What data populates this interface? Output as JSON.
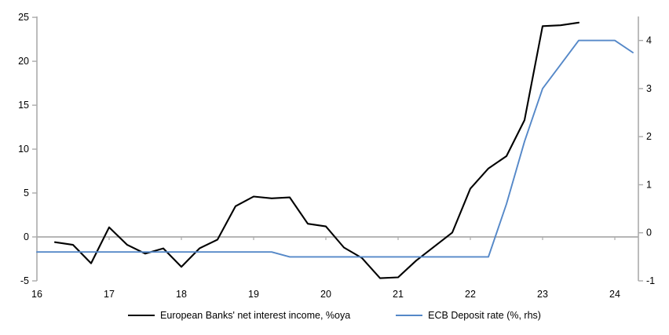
{
  "chart_data": {
    "type": "line",
    "title": "",
    "x_axis": {
      "min": 16,
      "max": 24.33,
      "ticks": [
        16,
        17,
        18,
        19,
        20,
        21,
        22,
        23,
        24
      ]
    },
    "left_axis": {
      "min": -5,
      "max": 25.1,
      "ticks": [
        -5,
        0,
        5,
        10,
        15,
        20,
        25
      ]
    },
    "right_axis": {
      "min": -1,
      "max": 4.5,
      "ticks": [
        -1,
        0,
        1,
        2,
        3,
        4
      ]
    },
    "grid": "zero-line-only",
    "legend_position": "bottom-center",
    "axis_color": "#ABABAB",
    "zero_line_color": "#ABABAB",
    "series": [
      {
        "name": "European Banks' net interest income, %oya",
        "axis": "left",
        "color": "#000000",
        "x": [
          16.25,
          16.5,
          16.75,
          17.0,
          17.25,
          17.5,
          17.75,
          18.0,
          18.25,
          18.5,
          18.75,
          19.0,
          19.25,
          19.5,
          19.75,
          20.0,
          20.25,
          20.5,
          20.75,
          21.0,
          21.25,
          21.5,
          21.75,
          22.0,
          22.25,
          22.5,
          22.75,
          23.0,
          23.25,
          23.5
        ],
        "values": [
          -0.6,
          -0.9,
          -3.0,
          1.1,
          -0.9,
          -1.9,
          -1.3,
          -3.4,
          -1.3,
          -0.3,
          3.5,
          4.6,
          4.4,
          4.5,
          1.5,
          1.2,
          -1.2,
          -2.4,
          -4.7,
          -4.6,
          -2.7,
          -1.1,
          0.5,
          5.5,
          7.8,
          9.2,
          13.3,
          24.0,
          24.1,
          24.4
        ]
      },
      {
        "name": "ECB Deposit rate (%, rhs)",
        "axis": "right",
        "color": "#5588C8",
        "x": [
          16.0,
          16.25,
          16.5,
          16.75,
          17.0,
          17.25,
          17.5,
          17.75,
          18.0,
          18.25,
          18.5,
          18.75,
          19.0,
          19.25,
          19.5,
          19.75,
          20.0,
          20.25,
          20.5,
          20.75,
          21.0,
          21.25,
          21.5,
          21.75,
          22.0,
          22.25,
          22.5,
          22.75,
          23.0,
          23.25,
          23.5,
          23.75,
          24.0,
          24.25
        ],
        "values": [
          -0.4,
          -0.4,
          -0.4,
          -0.4,
          -0.4,
          -0.4,
          -0.4,
          -0.4,
          -0.4,
          -0.4,
          -0.4,
          -0.4,
          -0.4,
          -0.4,
          -0.5,
          -0.5,
          -0.5,
          -0.5,
          -0.5,
          -0.5,
          -0.5,
          -0.5,
          -0.5,
          -0.5,
          -0.5,
          -0.5,
          0.6,
          1.9,
          3.0,
          3.5,
          4.0,
          4.0,
          4.0,
          3.75
        ]
      }
    ]
  }
}
